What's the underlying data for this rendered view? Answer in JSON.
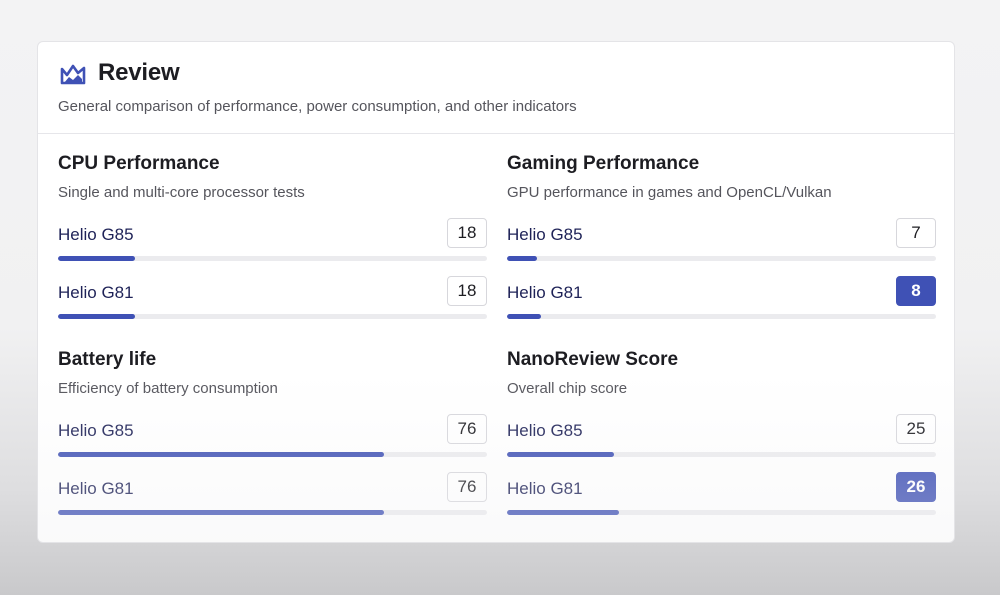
{
  "review": {
    "title": "Review",
    "subtitle": "General comparison of performance, power consumption, and other indicators",
    "accent_color": "#3f51b5",
    "icon": "mountain-chart-icon"
  },
  "sections": [
    {
      "title": "CPU Performance",
      "subtitle": "Single and multi-core processor tests",
      "rows": [
        {
          "label": "Helio G85",
          "score": "18",
          "percent": 18,
          "winner": false
        },
        {
          "label": "Helio G81",
          "score": "18",
          "percent": 18,
          "winner": false
        }
      ]
    },
    {
      "title": "Gaming Performance",
      "subtitle": "GPU performance in games and OpenCL/Vulkan",
      "rows": [
        {
          "label": "Helio G85",
          "score": "7",
          "percent": 7,
          "winner": false
        },
        {
          "label": "Helio G81",
          "score": "8",
          "percent": 8,
          "winner": true
        }
      ]
    },
    {
      "title": "Battery life",
      "subtitle": "Efficiency of battery consumption",
      "rows": [
        {
          "label": "Helio G85",
          "score": "76",
          "percent": 76,
          "winner": false
        },
        {
          "label": "Helio G81",
          "score": "76",
          "percent": 76,
          "winner": false
        }
      ]
    },
    {
      "title": "NanoReview Score",
      "subtitle": "Overall chip score",
      "rows": [
        {
          "label": "Helio G85",
          "score": "25",
          "percent": 25,
          "winner": false
        },
        {
          "label": "Helio G81",
          "score": "26",
          "percent": 26,
          "winner": true
        }
      ]
    }
  ]
}
